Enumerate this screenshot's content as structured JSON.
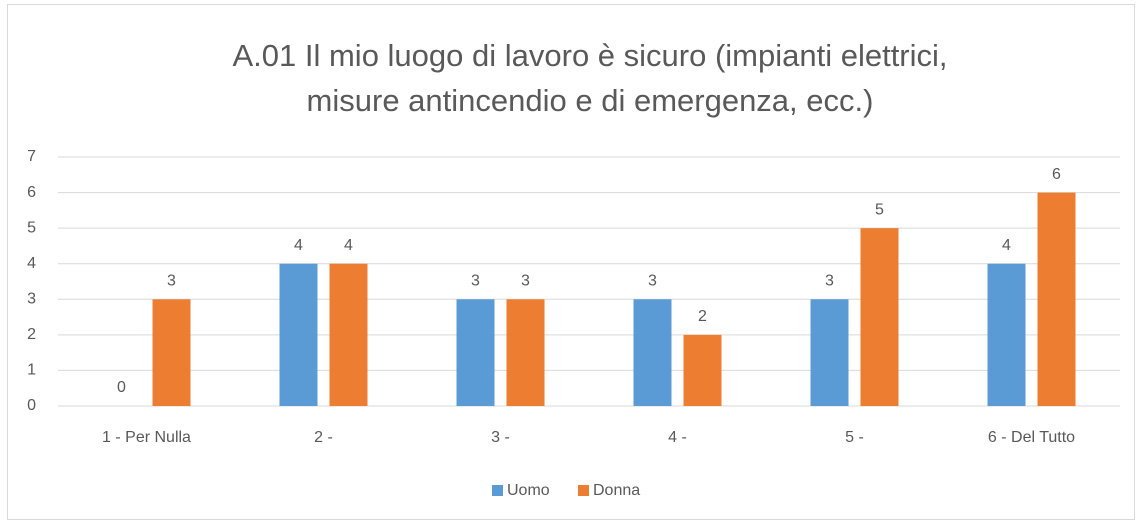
{
  "chart_data": {
    "type": "bar",
    "title": [
      "A.01 Il mio luogo di lavoro è sicuro (impianti elettrici,",
      "misure antincendio e di emergenza, ecc.)"
    ],
    "categories": [
      "1 - Per Nulla",
      "2 -",
      "3 -",
      "4 -",
      "5 -",
      "6 - Del Tutto"
    ],
    "series": [
      {
        "name": "Uomo",
        "color": "#5b9bd5",
        "values": [
          0,
          4,
          3,
          3,
          3,
          4
        ]
      },
      {
        "name": "Donna",
        "color": "#ed7d31",
        "values": [
          3,
          4,
          3,
          2,
          5,
          6
        ]
      }
    ],
    "ylim": [
      0,
      7
    ],
    "yticks": [
      0,
      1,
      2,
      3,
      4,
      5,
      6,
      7
    ],
    "grid": true,
    "legend": "bottom"
  }
}
